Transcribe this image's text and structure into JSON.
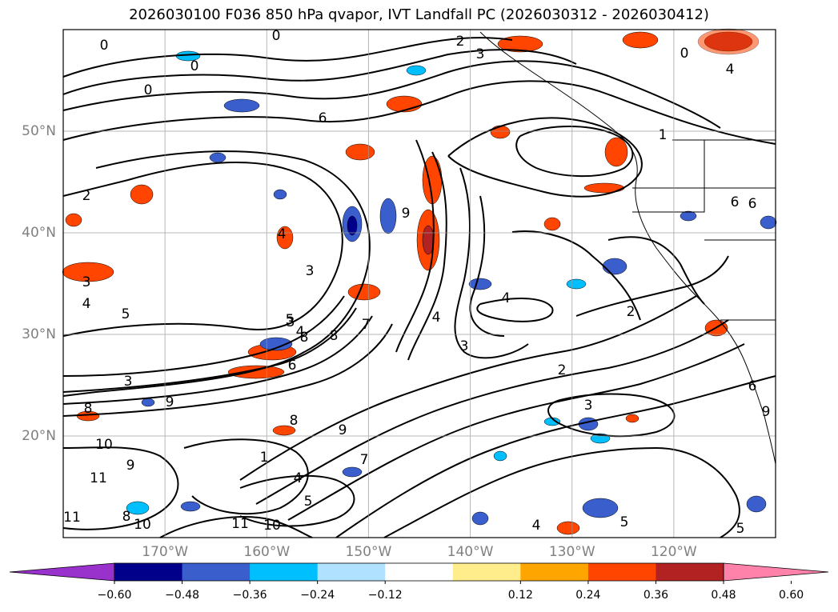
{
  "title": "2026030100 F036 850 hPa qvapor, IVT Landfall PC (2026030312 - 2026030412)",
  "map": {
    "lon_range": [
      -180,
      -110
    ],
    "lat_range": [
      10,
      60
    ],
    "lon_labels": [
      {
        "lon": -170,
        "text": "170°W"
      },
      {
        "lon": -160,
        "text": "160°W"
      },
      {
        "lon": -150,
        "text": "150°W"
      },
      {
        "lon": -140,
        "text": "140°W"
      },
      {
        "lon": -130,
        "text": "130°W"
      },
      {
        "lon": -120,
        "text": "120°W"
      }
    ],
    "lat_labels": [
      {
        "lat": 50,
        "text": "50°N"
      },
      {
        "lat": 40,
        "text": "40°N"
      },
      {
        "lat": 30,
        "text": "30°N"
      },
      {
        "lat": 20,
        "text": "20°N"
      }
    ],
    "gridlines": {
      "lons": [
        -170,
        -160,
        -150,
        -140,
        -130,
        -120,
        -110
      ],
      "lats": [
        20,
        30,
        40,
        50
      ]
    },
    "contour_labels": [
      "0",
      "0",
      "0",
      "0",
      "0",
      "2",
      "3",
      "4",
      "2",
      "1",
      "6",
      "6",
      "4",
      "3",
      "3",
      "4",
      "5",
      "2",
      "4",
      "3",
      "4",
      "2",
      "3",
      "3",
      "8",
      "9",
      "3",
      "8",
      "7",
      "8",
      "6",
      "4",
      "5",
      "6",
      "9",
      "10",
      "9",
      "11",
      "8",
      "10",
      "11",
      "10",
      "11",
      "9",
      "1",
      "7",
      "5",
      "4",
      "5",
      "4",
      "5",
      "6",
      "8",
      "9"
    ]
  },
  "colorbar": {
    "colors": [
      "#9932cc",
      "#00008b",
      "#3a5fcd",
      "#00bfff",
      "#b0e2ff",
      "#ffffff",
      "#ffec8b",
      "#ffa500",
      "#ff4500",
      "#b22222",
      "#ff82ab"
    ],
    "tick_labels": [
      "−0.60",
      "−0.48",
      "−0.36",
      "−0.24",
      "−0.12",
      "0.12",
      "0.24",
      "0.36",
      "0.48",
      "0.60"
    ]
  }
}
